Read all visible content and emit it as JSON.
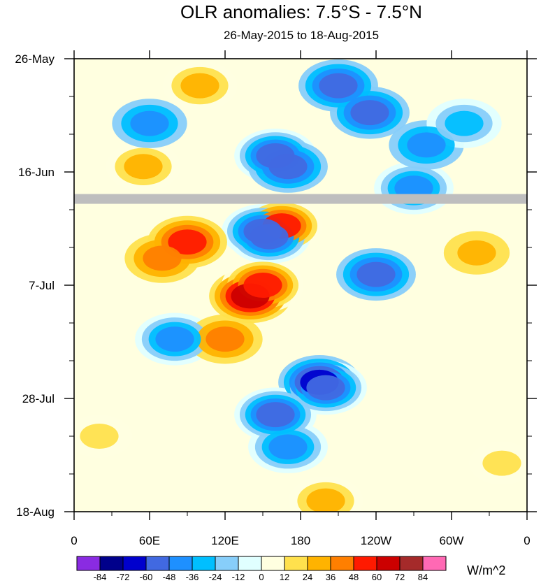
{
  "chart_data": {
    "type": "heatmap",
    "title": "OLR anomalies: 7.5°S - 7.5°N",
    "subtitle": "26-May-2015 to 18-Aug-2015",
    "units": "W/m^2",
    "x_ticks": [
      "0",
      "60E",
      "120E",
      "180",
      "120W",
      "60W",
      "0"
    ],
    "x_tick_longitudes": [
      0,
      60,
      120,
      180,
      240,
      300,
      360
    ],
    "y_ticks": [
      "26-May",
      "16-Jun",
      "7-Jul",
      "28-Jul",
      "18-Aug"
    ],
    "y_tick_days": [
      0,
      21,
      42,
      63,
      84
    ],
    "xlim": [
      0,
      360
    ],
    "ylim_days": [
      0,
      84
    ],
    "colorbar": {
      "levels": [
        "-84",
        "-72",
        "-60",
        "-48",
        "-36",
        "-24",
        "-12",
        "0",
        "12",
        "24",
        "36",
        "48",
        "60",
        "72",
        "84"
      ],
      "colors": [
        "#8a2be2",
        "#00008b",
        "#0000cd",
        "#4169e1",
        "#1e90ff",
        "#00bfff",
        "#87cefa",
        "#e0ffff",
        "#ffffe0",
        "#ffe14d",
        "#ffb300",
        "#ff7f00",
        "#ff1a00",
        "#cc0000",
        "#a52a2a",
        "#ff69b4"
      ]
    },
    "missing_band_day": 26,
    "features": [
      {
        "lon": 140,
        "day": 44,
        "value": 60
      },
      {
        "lon": 150,
        "day": 42,
        "value": 55
      },
      {
        "lon": 90,
        "day": 34,
        "value": 48
      },
      {
        "lon": 70,
        "day": 37,
        "value": 40
      },
      {
        "lon": 120,
        "day": 52,
        "value": 40
      },
      {
        "lon": 100,
        "day": 5,
        "value": 35
      },
      {
        "lon": 55,
        "day": 20,
        "value": 30
      },
      {
        "lon": 200,
        "day": 82,
        "value": 30
      },
      {
        "lon": 165,
        "day": 31,
        "value": 55
      },
      {
        "lon": 150,
        "day": 32,
        "value": -60
      },
      {
        "lon": 155,
        "day": 33,
        "value": -55
      },
      {
        "lon": 160,
        "day": 18,
        "value": -60
      },
      {
        "lon": 170,
        "day": 20,
        "value": -50
      },
      {
        "lon": 195,
        "day": 60,
        "value": -65
      },
      {
        "lon": 200,
        "day": 61,
        "value": -55
      },
      {
        "lon": 160,
        "day": 66,
        "value": -60
      },
      {
        "lon": 170,
        "day": 72,
        "value": -45
      },
      {
        "lon": 210,
        "day": 5,
        "value": -50
      },
      {
        "lon": 235,
        "day": 10,
        "value": -50
      },
      {
        "lon": 240,
        "day": 40,
        "value": -50
      },
      {
        "lon": 270,
        "day": 24,
        "value": -45
      },
      {
        "lon": 80,
        "day": 52,
        "value": -45
      },
      {
        "lon": 60,
        "day": 12,
        "value": -40
      },
      {
        "lon": 280,
        "day": 16,
        "value": -40
      },
      {
        "lon": 310,
        "day": 12,
        "value": -30
      },
      {
        "lon": 320,
        "day": 36,
        "value": 25
      },
      {
        "lon": 20,
        "day": 70,
        "value": 20
      },
      {
        "lon": 340,
        "day": 75,
        "value": 20
      }
    ]
  }
}
